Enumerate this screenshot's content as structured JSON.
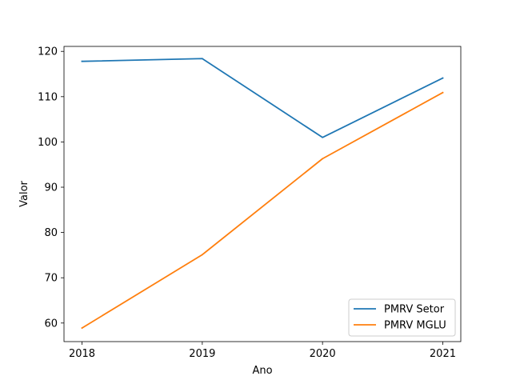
{
  "chart_data": {
    "type": "line",
    "title": "",
    "xlabel": "Ano",
    "ylabel": "Valor",
    "x": [
      2018,
      2019,
      2020,
      2021
    ],
    "xticks": [
      "2018",
      "2019",
      "2020",
      "2021"
    ],
    "yticks": [
      60,
      70,
      80,
      90,
      100,
      110,
      120
    ],
    "xlim": [
      2017.85,
      2021.15
    ],
    "ylim": [
      55.9,
      121.1
    ],
    "grid": false,
    "legend_position": "lower-right",
    "series": [
      {
        "name": "PMRV Setor",
        "color": "#1f77b4",
        "values": [
          117.8,
          118.4,
          101.0,
          114.1
        ]
      },
      {
        "name": "PMRV MGLU",
        "color": "#ff7f0e",
        "values": [
          58.9,
          75.1,
          96.3,
          110.9
        ]
      }
    ]
  }
}
